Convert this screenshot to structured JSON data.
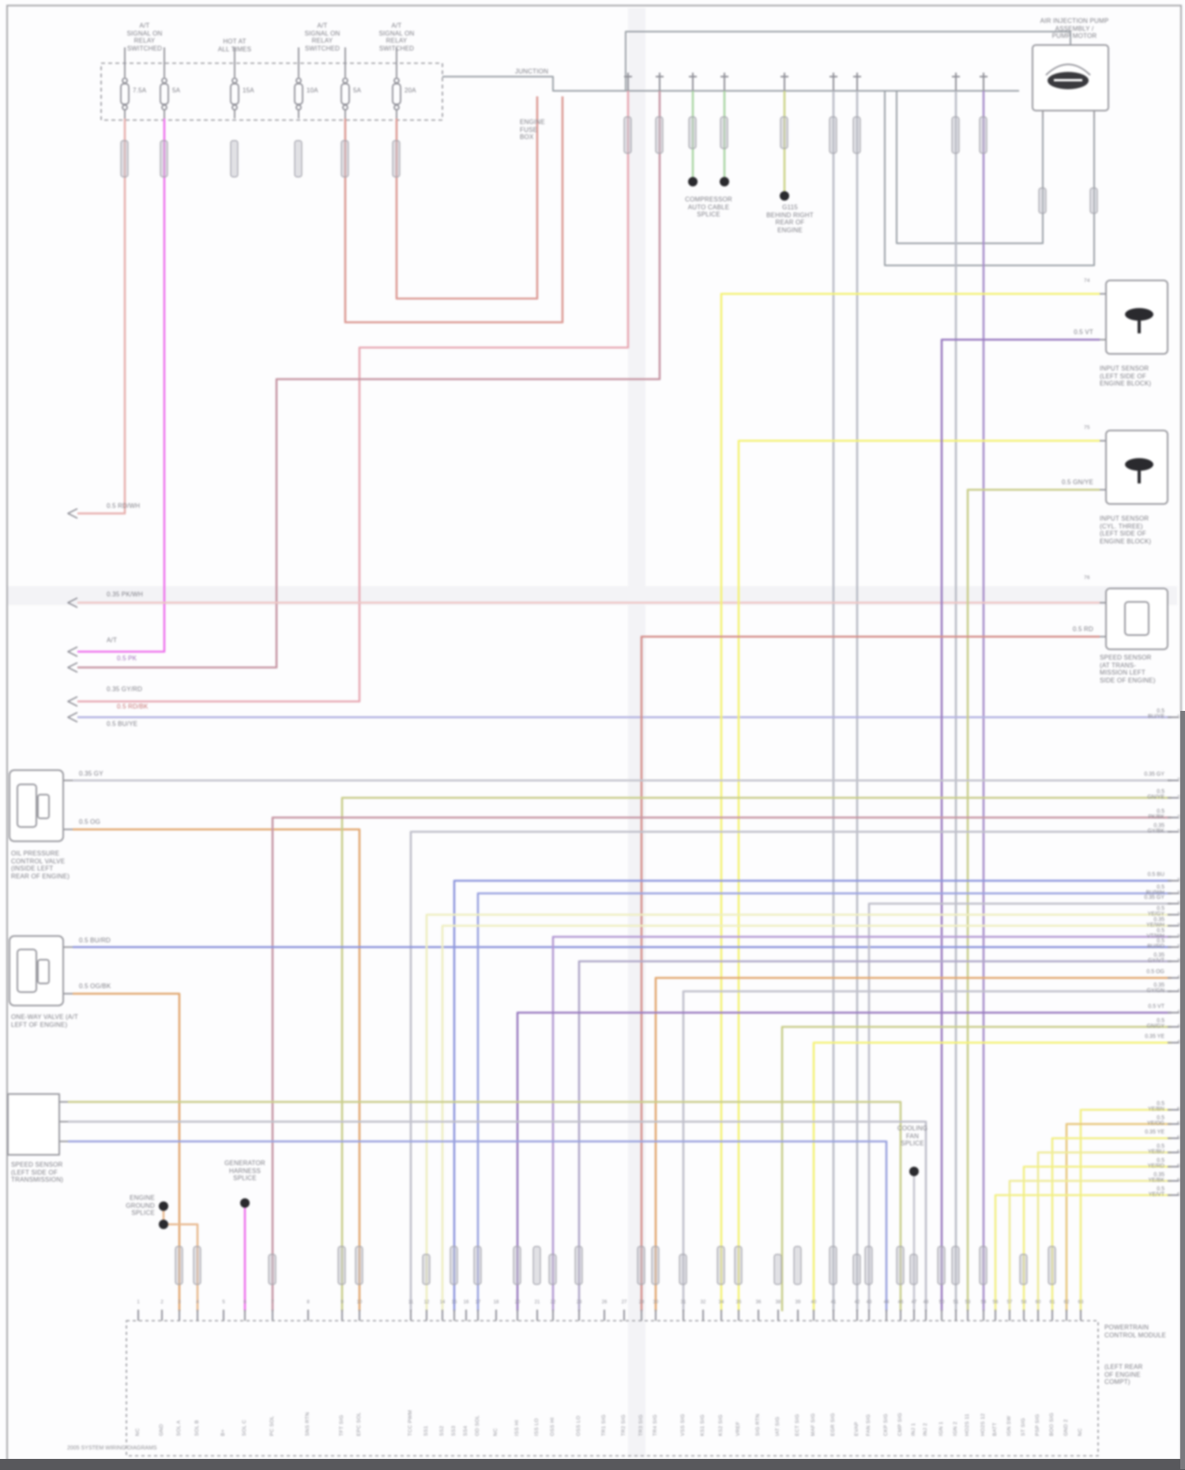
{
  "page": {
    "footer": "2005 SYSTEM WIRING DIAGRAMS"
  },
  "top": {
    "fuse_groups": [
      {
        "lines": "A/T\nSIGNAL ON\nRELAY\nSWITCHED"
      },
      {
        "lines": "HOT AT\nALL TIMES"
      },
      {
        "lines": "A/T\nSIGNAL ON\nRELAY\nSWITCHED"
      },
      {
        "lines": "A/T\nSIGNAL ON\nRELAY\nSWITCHED"
      }
    ],
    "fuses": [
      {
        "amp": "7.5A"
      },
      {
        "amp": "5A"
      },
      {
        "amp": "15A"
      },
      {
        "amp": "10A"
      },
      {
        "amp": "5A"
      },
      {
        "amp": "20A"
      }
    ],
    "panel_label_top": "JUNCTION",
    "panel_label": "ENGINE\nFUSE\nBOX",
    "assembly_label": "AIR INJECTION PUMP\nASSEMBLY /\nPUMP MOTOR",
    "splice_a": "COMPRESSOR\nAUTO CABLE\nSPLICE",
    "splice_b": "G115\nBEHIND RIGHT\nREAR OF\nENGINE"
  },
  "left": {
    "heading": "A/T",
    "offpage_codes": [
      "0.5 RD/WH",
      "0.35 PK/WH",
      "0.5 PK",
      "0.35 GY/RD",
      "0.5 RD/BK",
      "0.5 BU/YE"
    ],
    "c1_pins": {
      "top": "0.35 GY",
      "bottom": "0.5 OG"
    },
    "c1_label": "OIL PRESSURE\nCONTROL VALVE\n(INSIDE LEFT\nREAR OF ENGINE)",
    "c2_pins": {
      "top": "0.5 BU/RD",
      "bottom": "0.5 OG/BK"
    },
    "c2_label": "ONE-WAY VALVE (A/T\nLEFT OF ENGINE)",
    "c3_label": "SPEED SENSOR\n(LEFT SIDE OF\nTRANSMISSION)",
    "ground_splice": "ENGINE\nGROUND\nSPLICE",
    "gen_splice": "GENERATOR\nHARNESS\nSPLICE"
  },
  "right": {
    "sensors": [
      {
        "pin_no": "74",
        "bot_code": "0.5 VT",
        "label": "INPUT SENSOR\n(LEFT SIDE OF\nENGINE BLOCK)"
      },
      {
        "pin_no": "75",
        "bot_code": "0.5 GN/YE",
        "label": "INPUT SENSOR\n(CYL. THREE)\n(LEFT SIDE OF\nENGINE BLOCK)"
      },
      {
        "pin_no": "76",
        "bot_code": "0.5 RD",
        "label": "SPEED SENSOR\n(AT TRANS-\nMISSION LEFT\nSIDE OF ENGINE)"
      }
    ],
    "edge_pins": [
      {
        "num": "18",
        "code": "0.5 BU/YE"
      },
      {
        "num": "21",
        "code": "0.35 GY"
      },
      {
        "num": "22",
        "code": "0.5 GN/YE"
      },
      {
        "num": "23",
        "code": "0.5 PK/BK"
      },
      {
        "num": "24",
        "code": "0.35 GY/BK"
      },
      {
        "num": "31",
        "code": "0.5 BU"
      },
      {
        "num": "32",
        "code": "0.5 BU/WH"
      },
      {
        "num": "33",
        "code": "0.35 GY"
      },
      {
        "num": "34",
        "code": "0.5 YE/GY"
      },
      {
        "num": "35",
        "code": "0.35 YE/WH"
      },
      {
        "num": "36",
        "code": "0.5 VT/WH"
      },
      {
        "num": "37",
        "code": "0.5 BU/RD"
      },
      {
        "num": "38",
        "code": "0.35 GY/VT"
      },
      {
        "num": "41",
        "code": "0.5 OG"
      },
      {
        "num": "42",
        "code": "0.35 GY/GN"
      },
      {
        "num": "43",
        "code": "0.5 VT"
      },
      {
        "num": "44",
        "code": "0.5 GN/GY"
      },
      {
        "num": "45",
        "code": "0.35 YE"
      },
      {
        "num": "51",
        "code": "0.5 YE/BN"
      },
      {
        "num": "52",
        "code": "0.5 YE/OG"
      },
      {
        "num": "53",
        "code": "0.35 YE"
      },
      {
        "num": "54",
        "code": "0.5 YE/BU"
      },
      {
        "num": "55",
        "code": "0.5 YE/RD"
      },
      {
        "num": "56",
        "code": "0.35 YE/BK"
      },
      {
        "num": "57",
        "code": "0.5 YE/VT"
      }
    ]
  },
  "bottom": {
    "module_label": "POWERTRAIN\nCONTROL MODULE",
    "module_loc": "(LEFT REAR\nOF ENGINE\nCOMPT)",
    "splice_label": "COOLING\nFAN\nSPLICE",
    "pin_numbers": [
      "1",
      "2",
      "3",
      "4",
      "5",
      "6",
      "7",
      "8",
      "9",
      "10",
      "11",
      "12",
      "14",
      "15",
      "16",
      "17",
      "18",
      "20",
      "21",
      "22",
      "23",
      "26",
      "27",
      "28",
      "30",
      "31",
      "32",
      "34",
      "35",
      "36",
      "38",
      "39",
      "40",
      "41",
      "42",
      "43",
      "44",
      "46",
      "47",
      "48",
      "50",
      "51",
      "53",
      "54",
      "56",
      "57",
      "58",
      "60",
      "61",
      "62",
      "63"
    ],
    "pin_labels": [
      "NC",
      "GND",
      "SOL A",
      "SOL B",
      "B+",
      "SOL C",
      "PC SOL",
      "SNS RTN",
      "TFT SIG",
      "EPC SOL",
      "TCC PWM",
      "SS1",
      "SS2",
      "SS3",
      "SS4",
      "OD SOL",
      "NC",
      "ISS HI",
      "ISS LO",
      "OSS HI",
      "OSS LO",
      "TR1 SIG",
      "TR2 SIG",
      "TR3 SIG",
      "TR4 SIG",
      "VSS SIG",
      "KS1 SIG",
      "KS2 SIG",
      "VREF",
      "SIG RTN",
      "IAT SIG",
      "ECT SIG",
      "MAF SIG",
      "EGR SIG",
      "EVAP",
      "FAN SIG",
      "CKP SIG",
      "CMP SIG",
      "INJ 1",
      "INJ 2",
      "IGN 1",
      "IGN 2",
      "HO2S 11",
      "HO2S 12",
      "BATT",
      "IGN SW",
      "ST SIG",
      "PSP SIG",
      "BOO SIG",
      "GND 2",
      "NC"
    ]
  }
}
